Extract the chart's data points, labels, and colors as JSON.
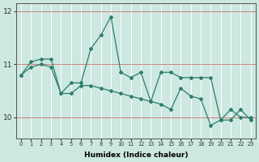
{
  "xlabel": "Humidex (Indice chaleur)",
  "bg_color": "#cce8e0",
  "line_color": "#2e7d6e",
  "grid_color_v": "#ffffff",
  "grid_color_h": "#d08080",
  "xlim": [
    -0.5,
    23.5
  ],
  "ylim": [
    9.6,
    12.15
  ],
  "yticks": [
    10,
    11,
    12
  ],
  "xticks": [
    0,
    1,
    2,
    3,
    4,
    5,
    6,
    7,
    8,
    9,
    10,
    11,
    12,
    13,
    14,
    15,
    16,
    17,
    18,
    19,
    20,
    21,
    22,
    23
  ],
  "series1_x": [
    0,
    1,
    2,
    3,
    4,
    5,
    6,
    7,
    8,
    9,
    10,
    11,
    12,
    13,
    14,
    15,
    16,
    17,
    18,
    19,
    20,
    21,
    22,
    23
  ],
  "series1_y": [
    10.8,
    11.05,
    11.1,
    11.1,
    10.45,
    10.65,
    10.65,
    11.3,
    11.55,
    11.9,
    10.85,
    10.75,
    10.85,
    10.3,
    10.85,
    10.85,
    10.75,
    10.75,
    10.75,
    10.75,
    9.95,
    10.15,
    10.0,
    10.0
  ],
  "series2_x": [
    0,
    1,
    2,
    3,
    4,
    5,
    6,
    7,
    8,
    9,
    10,
    11,
    12,
    13,
    14,
    15,
    16,
    17,
    18,
    19,
    20,
    21,
    22,
    23
  ],
  "series2_y": [
    10.8,
    10.95,
    11.0,
    10.95,
    10.45,
    10.45,
    10.6,
    10.6,
    10.55,
    10.5,
    10.45,
    10.4,
    10.35,
    10.3,
    10.25,
    10.15,
    10.55,
    10.4,
    10.35,
    9.85,
    9.95,
    9.95,
    10.15,
    9.95
  ]
}
